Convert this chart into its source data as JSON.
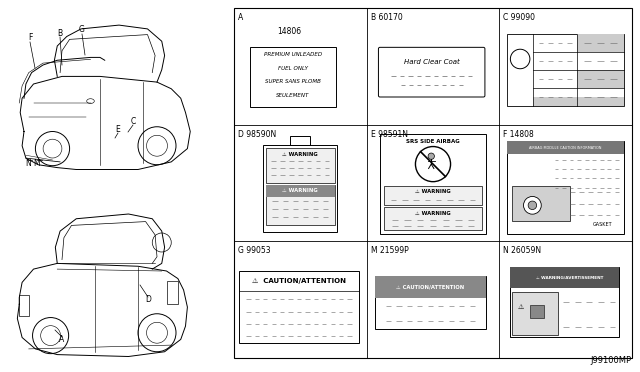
{
  "bg_color": "#ffffff",
  "border_color": "#000000",
  "text_color": "#000000",
  "gray_color": "#666666",
  "light_gray": "#cccccc",
  "mid_gray": "#999999",
  "dark_gray": "#555555",
  "page_title": "J99100MP",
  "gx0": 234,
  "gy0": 8,
  "gx1": 632,
  "gy1": 358,
  "cells": [
    {
      "label": "A",
      "part": "14806",
      "row": 0,
      "col": 0
    },
    {
      "label": "B 60170",
      "part": "",
      "row": 0,
      "col": 1
    },
    {
      "label": "C 99090",
      "part": "",
      "row": 0,
      "col": 2
    },
    {
      "label": "D 98590N",
      "part": "",
      "row": 1,
      "col": 0
    },
    {
      "label": "E 98591N",
      "part": "",
      "row": 1,
      "col": 1
    },
    {
      "label": "F 14808",
      "part": "",
      "row": 1,
      "col": 2
    },
    {
      "label": "G 99053",
      "part": "",
      "row": 2,
      "col": 0
    },
    {
      "label": "M 21599P",
      "part": "",
      "row": 2,
      "col": 1
    },
    {
      "label": "N 26059N",
      "part": "",
      "row": 2,
      "col": 2
    }
  ]
}
